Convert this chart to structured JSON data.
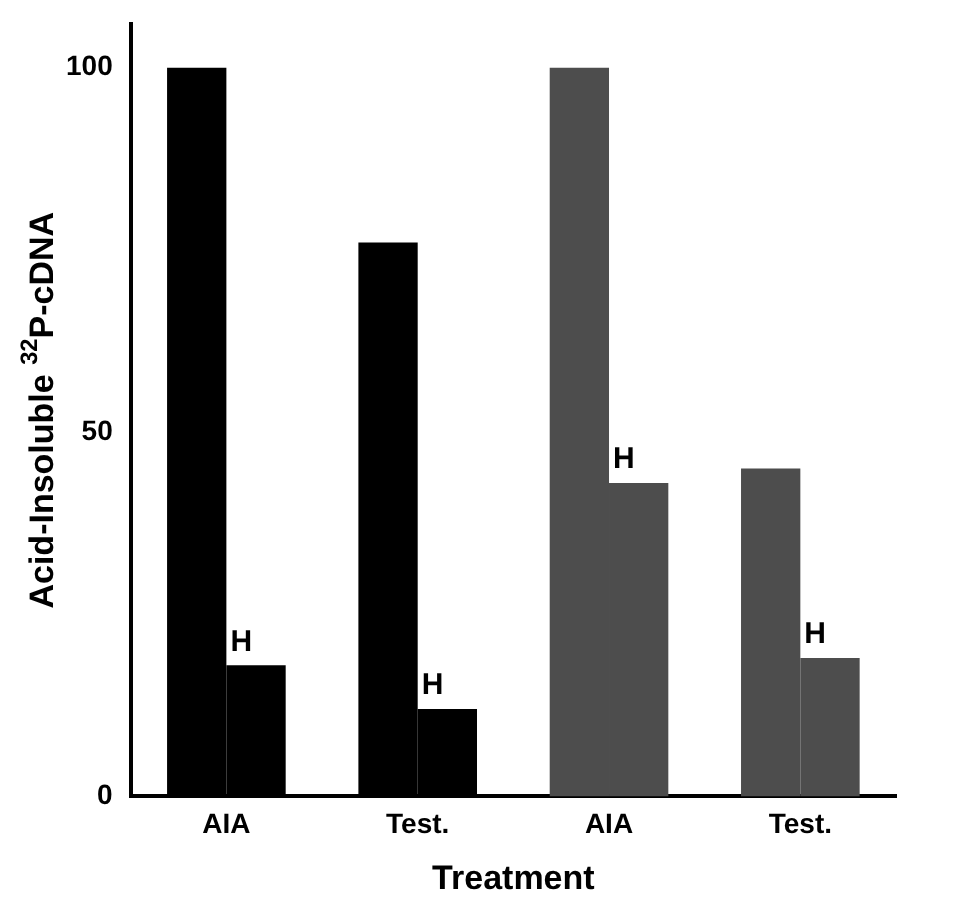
{
  "chart_data": {
    "type": "bar",
    "xlabel": "Treatment",
    "ylabel": "Acid-Insoluble $^{32}$P-cDNA",
    "categories": [
      "AIA",
      "Test.",
      "AIA",
      "Test."
    ],
    "series": [
      {
        "colors": [
          "#000000",
          "#000000",
          "#4d4d4d",
          "#4d4d4d"
        ],
        "values": [
          100,
          76,
          100,
          45
        ]
      },
      {
        "name": "H",
        "colors": [
          "#000000",
          "#000000",
          "#4d4d4d",
          "#4d4d4d"
        ],
        "values": [
          18,
          12,
          43,
          19
        ]
      }
    ],
    "ylim": [
      0,
      106
    ],
    "yticks": [
      0,
      50,
      100
    ],
    "grid": false,
    "legend": false
  }
}
